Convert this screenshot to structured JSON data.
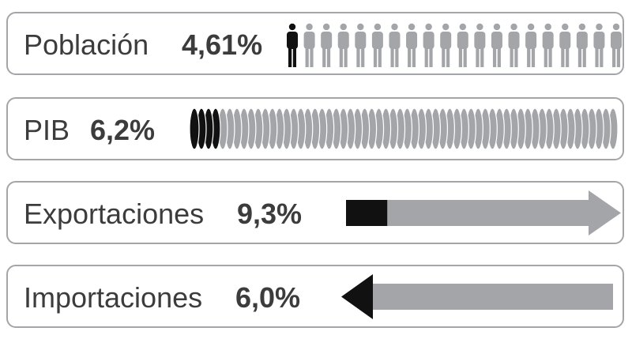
{
  "chart_data": {
    "type": "pictograph",
    "rows": [
      {
        "id": "poblacion",
        "label": "Población",
        "value_text": "4,61%",
        "value": 4.61,
        "visual": "people",
        "total_units": 20,
        "highlight_units": 1
      },
      {
        "id": "pib",
        "label": "PIB",
        "value_text": "6,2%",
        "value": 6.2,
        "visual": "coins",
        "total_units": 60,
        "highlight_units": 4
      },
      {
        "id": "exportaciones",
        "label": "Exportaciones",
        "value_text": "9,3%",
        "value": 9.3,
        "visual": "arrow-right",
        "highlight_fraction": 0.15
      },
      {
        "id": "importaciones",
        "label": "Importaciones",
        "value_text": "6,0%",
        "value": 6.0,
        "visual": "arrow-left",
        "highlight_fraction": 0.09
      }
    ]
  },
  "colors": {
    "highlight": "#111111",
    "base": "#a3a5a8",
    "border": "#a3a5a8",
    "text": "#3c3c3c"
  }
}
